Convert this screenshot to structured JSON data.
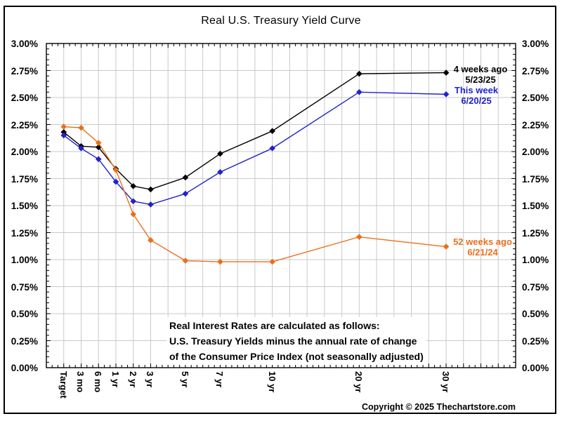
{
  "title": "Real U.S. Treasury Yield Curve",
  "footnote": {
    "line1": "Real Interest Rates are calculated as follows:",
    "line2": "U.S. Treasury Yields minus the annual rate of change",
    "line3": "of the Consumer Price Index (not seasonally adjusted)"
  },
  "copyright": "Copyright © 2025 Thechartstore.com",
  "colors": {
    "series_4_weeks_ago": "#000000",
    "series_this_week": "#2222cc",
    "series_52_weeks_ago": "#e8701d",
    "grid": "#c9c9c9",
    "axis": "#000000",
    "background": "#ffffff"
  },
  "chart_data": {
    "type": "line",
    "title": "Real U.S. Treasury Yield Curve",
    "categories": [
      "Target",
      "3 mo",
      "6 mo",
      "1 yr",
      "2 yr",
      "3 yr",
      "5 yr",
      "7 yr",
      "10 yr",
      "20 yr",
      "30 yr"
    ],
    "series": [
      {
        "name": "4 weeks ago",
        "date": "5/23/25",
        "color": "#000000",
        "values": [
          2.18,
          2.05,
          2.04,
          1.84,
          1.68,
          1.65,
          1.76,
          1.98,
          2.19,
          2.72,
          2.73
        ]
      },
      {
        "name": "This week",
        "date": "6/20/25",
        "color": "#2222cc",
        "values": [
          2.15,
          2.03,
          1.93,
          1.72,
          1.54,
          1.51,
          1.61,
          1.81,
          2.03,
          2.55,
          2.53
        ]
      },
      {
        "name": "52 weeks ago",
        "date": "6/21/24",
        "color": "#e8701d",
        "values": [
          2.23,
          2.22,
          2.08,
          1.83,
          1.42,
          1.18,
          0.99,
          0.98,
          0.98,
          1.21,
          1.12
        ]
      }
    ],
    "ylim": [
      0.0,
      3.0
    ],
    "ytick_step": 0.25,
    "ytick_labels": [
      "3.00%",
      "2.75%",
      "2.50%",
      "2.25%",
      "2.00%",
      "1.75%",
      "1.50%",
      "1.25%",
      "1.00%",
      "0.75%",
      "0.50%",
      "0.25%",
      "0.00%"
    ],
    "y_axis_labels_sides": "both",
    "xtick_rotation": 90,
    "grid": true,
    "marker": "diamond",
    "legend_position": "right-of-line-ends",
    "category_grid_index": [
      1,
      2,
      3,
      4,
      5,
      6,
      8,
      10,
      13,
      18,
      23
    ],
    "x_grid_intervals": 27
  }
}
